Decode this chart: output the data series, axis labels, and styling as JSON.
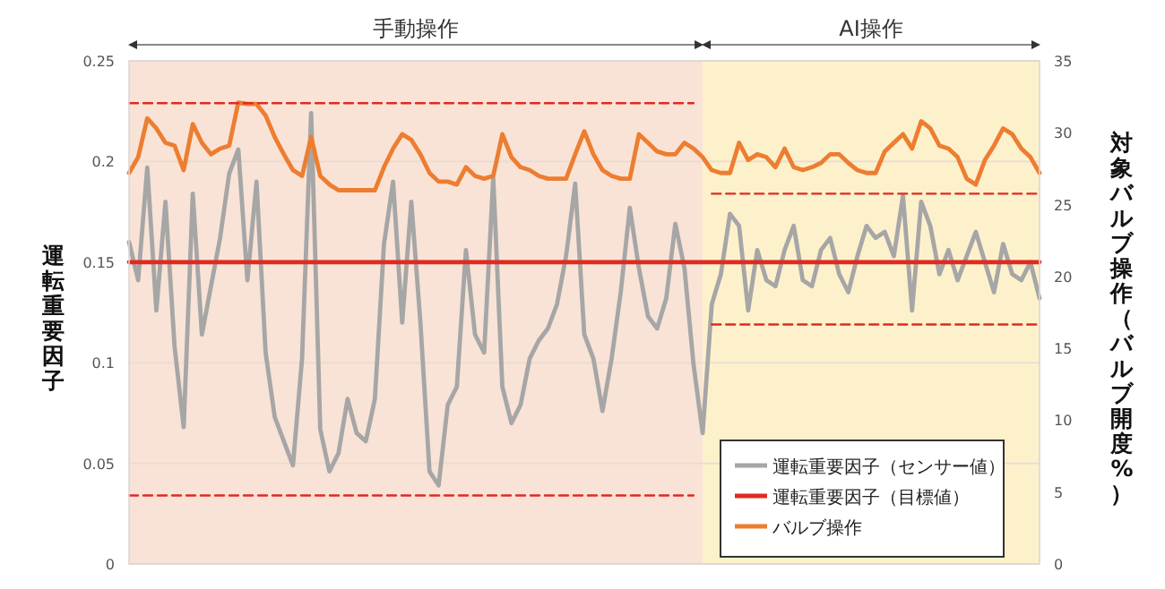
{
  "chart_data": {
    "type": "line",
    "ylabel": "運転重要因子",
    "y2label": "対象バルブ操作（バルブ開度%）",
    "categories": [
      null,
      null,
      null,
      null,
      null,
      null,
      null,
      null,
      null,
      null,
      null,
      null,
      null,
      null,
      null,
      null,
      null,
      null,
      null,
      null,
      null,
      null,
      null,
      null,
      null,
      null,
      null,
      null,
      null,
      null,
      null,
      null,
      null,
      null,
      null,
      null,
      null,
      null,
      null,
      null,
      null,
      null,
      null,
      null,
      null,
      null,
      null,
      null,
      null,
      null,
      null,
      null,
      null,
      null,
      null,
      null,
      null,
      null,
      null,
      null,
      null,
      null,
      null,
      null,
      null,
      null,
      null,
      null,
      null,
      null,
      null,
      null,
      null,
      null,
      null,
      null,
      null,
      null,
      null,
      null,
      null,
      null,
      null,
      null,
      null,
      null,
      null,
      null,
      null,
      null,
      null,
      null,
      null,
      null,
      null,
      null,
      null,
      null,
      null,
      null,
      null
    ],
    "ylim": [
      0,
      0.25
    ],
    "yticks": [
      0,
      0.05,
      0.1,
      0.15,
      0.2,
      0.25
    ],
    "y2lim": [
      0,
      35
    ],
    "y2ticks": [
      0,
      5,
      10,
      15,
      20,
      25,
      30,
      35
    ],
    "grid": "y",
    "legend": "bottom right",
    "line_style": "solid",
    "annotations": [
      "手動操作",
      "AI操作"
    ],
    "series": [
      {
        "name": "運転重要因子（センサー値）",
        "color": "#a6a6a6",
        "values": [
          0.16,
          0.141,
          0.197,
          0.126,
          0.18,
          0.108,
          0.068,
          0.184,
          0.114,
          0.138,
          0.162,
          0.194,
          0.206,
          0.141,
          0.19,
          0.105,
          0.073,
          0.061,
          0.049,
          0.102,
          0.224,
          0.067,
          0.046,
          0.055,
          0.082,
          0.065,
          0.061,
          0.082,
          0.159,
          0.19,
          0.12,
          0.18,
          0.12,
          0.046,
          0.039,
          0.079,
          0.088,
          0.156,
          0.114,
          0.105,
          0.192,
          0.088,
          0.07,
          0.079,
          0.102,
          0.111,
          0.117,
          0.129,
          0.153,
          0.189,
          0.114,
          0.102,
          0.076,
          0.102,
          0.135,
          0.177,
          0.147,
          0.123,
          0.117,
          0.132,
          0.169,
          0.147,
          0.099,
          0.065,
          0.129,
          0.144,
          0.174,
          0.168,
          0.126,
          0.156,
          0.141,
          0.138,
          0.156,
          0.168,
          0.141,
          0.138,
          0.156,
          0.162,
          0.144,
          0.135,
          0.153,
          0.168,
          0.162,
          0.165,
          0.153,
          0.183,
          0.126,
          0.18,
          0.168,
          0.144,
          0.156,
          0.141,
          0.153,
          0.165,
          0.15,
          0.135,
          0.159,
          0.144,
          0.141,
          0.15,
          0.132
        ]
      },
      {
        "name": "運転重要因子（目標値）",
        "color": "#e02a20",
        "values": [
          0.15,
          0.15,
          0.15,
          0.15,
          0.15,
          0.15,
          0.15,
          0.15,
          0.15,
          0.15,
          0.15,
          0.15,
          0.15,
          0.15,
          0.15,
          0.15,
          0.15,
          0.15,
          0.15,
          0.15,
          0.15,
          0.15,
          0.15,
          0.15,
          0.15,
          0.15,
          0.15,
          0.15,
          0.15,
          0.15,
          0.15,
          0.15,
          0.15,
          0.15,
          0.15,
          0.15,
          0.15,
          0.15,
          0.15,
          0.15,
          0.15,
          0.15,
          0.15,
          0.15,
          0.15,
          0.15,
          0.15,
          0.15,
          0.15,
          0.15,
          0.15,
          0.15,
          0.15,
          0.15,
          0.15,
          0.15,
          0.15,
          0.15,
          0.15,
          0.15,
          0.15,
          0.15,
          0.15,
          0.15,
          0.15,
          0.15,
          0.15,
          0.15,
          0.15,
          0.15,
          0.15,
          0.15,
          0.15,
          0.15,
          0.15,
          0.15,
          0.15,
          0.15,
          0.15,
          0.15,
          0.15,
          0.15,
          0.15,
          0.15,
          0.15,
          0.15,
          0.15,
          0.15,
          0.15,
          0.15,
          0.15,
          0.15,
          0.15,
          0.15,
          0.15,
          0.15,
          0.15,
          0.15,
          0.15,
          0.15,
          0.15
        ]
      },
      {
        "name": "バルブ操作",
        "color": "#ed7d31",
        "axis": "y2",
        "values": [
          27.2,
          28.3,
          31.0,
          30.3,
          29.3,
          29.1,
          27.4,
          30.6,
          29.3,
          28.5,
          28.9,
          29.1,
          32.1,
          32.0,
          32.0,
          31.2,
          29.7,
          28.5,
          27.4,
          27.0,
          29.7,
          27.0,
          26.4,
          26.0,
          26.0,
          26.0,
          26.0,
          26.0,
          27.6,
          28.9,
          29.9,
          29.5,
          28.5,
          27.2,
          26.6,
          26.6,
          26.4,
          27.6,
          27.0,
          26.8,
          27.0,
          29.9,
          28.3,
          27.6,
          27.4,
          27.0,
          26.8,
          26.8,
          26.8,
          28.5,
          30.1,
          28.5,
          27.4,
          27.0,
          26.8,
          26.8,
          29.9,
          29.3,
          28.7,
          28.5,
          28.5,
          29.3,
          28.9,
          28.3,
          27.4,
          27.2,
          27.2,
          29.3,
          28.1,
          28.5,
          28.3,
          27.6,
          28.9,
          27.6,
          27.4,
          27.6,
          27.9,
          28.5,
          28.5,
          27.9,
          27.4,
          27.2,
          27.2,
          28.7,
          29.3,
          29.9,
          28.9,
          30.8,
          30.3,
          29.1,
          28.9,
          28.3,
          26.8,
          26.4,
          28.1,
          29.1,
          30.3,
          29.9,
          28.9,
          28.3,
          27.2
        ]
      },
      {
        "color": "#e02a20",
        "line_style": "dashed",
        "values": [
          0.229,
          0.229,
          0.229,
          0.229,
          0.229,
          0.229,
          0.229,
          0.229,
          0.229,
          0.229,
          0.229,
          0.229,
          0.229,
          0.229,
          0.229,
          0.229,
          0.229,
          0.229,
          0.229,
          0.229,
          0.229,
          0.229,
          0.229,
          0.229,
          0.229,
          0.229,
          0.229,
          0.229,
          0.229,
          0.229,
          0.229,
          0.229,
          0.229,
          0.229,
          0.229,
          0.229,
          0.229,
          0.229,
          0.229,
          0.229,
          0.229,
          0.229,
          0.229,
          0.229,
          0.229,
          0.229,
          0.229,
          0.229,
          0.229,
          0.229,
          0.229,
          0.229,
          0.229,
          0.229,
          0.229,
          0.229,
          0.229,
          0.229,
          0.229,
          0.229,
          0.229,
          0.229,
          0.229,
          null,
          null,
          null,
          null,
          null,
          null,
          null,
          null,
          null,
          null,
          null,
          null,
          null,
          null,
          null,
          null,
          null,
          null,
          null,
          null,
          null,
          null,
          null,
          null,
          null,
          null,
          null,
          null,
          null,
          null,
          null,
          null,
          null,
          null,
          null,
          null,
          null,
          null
        ]
      },
      {
        "color": "#e02a20",
        "line_style": "dashed",
        "values": [
          0.034,
          0.034,
          0.034,
          0.034,
          0.034,
          0.034,
          0.034,
          0.034,
          0.034,
          0.034,
          0.034,
          0.034,
          0.034,
          0.034,
          0.034,
          0.034,
          0.034,
          0.034,
          0.034,
          0.034,
          0.034,
          0.034,
          0.034,
          0.034,
          0.034,
          0.034,
          0.034,
          0.034,
          0.034,
          0.034,
          0.034,
          0.034,
          0.034,
          0.034,
          0.034,
          0.034,
          0.034,
          0.034,
          0.034,
          0.034,
          0.034,
          0.034,
          0.034,
          0.034,
          0.034,
          0.034,
          0.034,
          0.034,
          0.034,
          0.034,
          0.034,
          0.034,
          0.034,
          0.034,
          0.034,
          0.034,
          0.034,
          0.034,
          0.034,
          0.034,
          0.034,
          0.034,
          0.034,
          null,
          null,
          null,
          null,
          null,
          null,
          null,
          null,
          null,
          null,
          null,
          null,
          null,
          null,
          null,
          null,
          null,
          null,
          null,
          null,
          null,
          null,
          null,
          null,
          null,
          null,
          null,
          null,
          null,
          null,
          null,
          null,
          null,
          null,
          null,
          null,
          null,
          null
        ]
      },
      {
        "color": "#e02a20",
        "line_style": "dashed",
        "values": [
          null,
          null,
          null,
          null,
          null,
          null,
          null,
          null,
          null,
          null,
          null,
          null,
          null,
          null,
          null,
          null,
          null,
          null,
          null,
          null,
          null,
          null,
          null,
          null,
          null,
          null,
          null,
          null,
          null,
          null,
          null,
          null,
          null,
          null,
          null,
          null,
          null,
          null,
          null,
          null,
          null,
          null,
          null,
          null,
          null,
          null,
          null,
          null,
          null,
          null,
          null,
          null,
          null,
          null,
          null,
          null,
          null,
          null,
          null,
          null,
          null,
          null,
          null,
          null,
          0.184,
          0.184,
          0.184,
          0.184,
          0.184,
          0.184,
          0.184,
          0.184,
          0.184,
          0.184,
          0.184,
          0.184,
          0.184,
          0.184,
          0.184,
          0.184,
          0.184,
          0.184,
          0.184,
          0.184,
          0.184,
          0.184,
          0.184,
          0.184,
          0.184,
          0.184,
          0.184,
          0.184,
          0.184,
          0.184,
          0.184,
          0.184,
          0.184,
          0.184,
          0.184,
          0.184,
          0.184
        ]
      },
      {
        "color": "#e02a20",
        "line_style": "dashed",
        "values": [
          null,
          null,
          null,
          null,
          null,
          null,
          null,
          null,
          null,
          null,
          null,
          null,
          null,
          null,
          null,
          null,
          null,
          null,
          null,
          null,
          null,
          null,
          null,
          null,
          null,
          null,
          null,
          null,
          null,
          null,
          null,
          null,
          null,
          null,
          null,
          null,
          null,
          null,
          null,
          null,
          null,
          null,
          null,
          null,
          null,
          null,
          null,
          null,
          null,
          null,
          null,
          null,
          null,
          null,
          null,
          null,
          null,
          null,
          null,
          null,
          null,
          null,
          null,
          null,
          0.119,
          0.119,
          0.119,
          0.119,
          0.119,
          0.119,
          0.119,
          0.119,
          0.119,
          0.119,
          0.119,
          0.119,
          0.119,
          0.119,
          0.119,
          0.119,
          0.119,
          0.119,
          0.119,
          0.119,
          0.119,
          0.119,
          0.119,
          0.119,
          0.119,
          0.119,
          0.119,
          0.119,
          0.119,
          0.119,
          0.119,
          0.119,
          0.119,
          0.119,
          0.119,
          0.119,
          0.119
        ]
      }
    ]
  }
}
